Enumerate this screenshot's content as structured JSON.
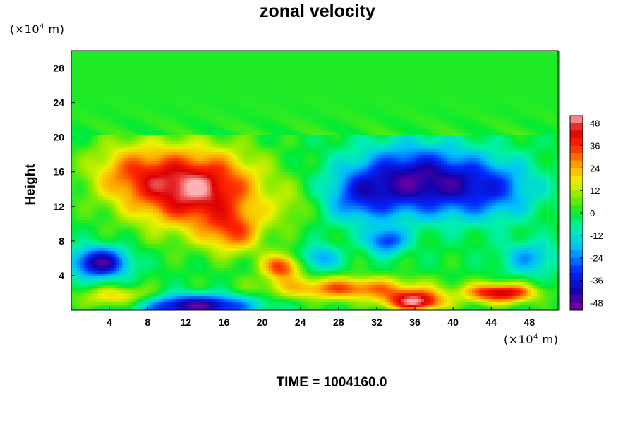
{
  "chart_data": {
    "type": "heatmap",
    "title": "zonal velocity",
    "ylabel": "Height",
    "x_units": "(×10",
    "x_units_exp": "4",
    "x_units_tail": " m)",
    "y_units": "(×10",
    "y_units_exp": "4",
    "y_units_tail": " m)",
    "xlim": [
      0,
      51
    ],
    "ylim": [
      0,
      30
    ],
    "x_ticks": [
      4,
      8,
      12,
      16,
      20,
      24,
      28,
      32,
      36,
      40,
      44,
      48
    ],
    "y_ticks": [
      4,
      8,
      12,
      16,
      20,
      24,
      28
    ],
    "colorbar": {
      "range": [
        -52,
        52
      ],
      "ticks": [
        48,
        36,
        24,
        12,
        0,
        -12,
        -24,
        -36,
        -48
      ]
    },
    "features": [
      {
        "x": 13,
        "y": 14,
        "sx": 6.5,
        "sy": 4.5,
        "value": 50
      },
      {
        "x": 6,
        "y": 16,
        "sx": 4.5,
        "sy": 3.5,
        "value": 20
      },
      {
        "x": 17,
        "y": 9,
        "sx": 3,
        "sy": 2.5,
        "value": 25
      },
      {
        "x": 36,
        "y": 15,
        "sx": 6.5,
        "sy": 4,
        "value": -44
      },
      {
        "x": 30,
        "y": 13,
        "sx": 3.5,
        "sy": 3,
        "value": -20
      },
      {
        "x": 44,
        "y": 14,
        "sx": 5,
        "sy": 3.5,
        "value": -25
      },
      {
        "x": 48,
        "y": 6,
        "sx": 3,
        "sy": 2,
        "value": -20
      },
      {
        "x": 3,
        "y": 5.5,
        "sx": 3,
        "sy": 1.8,
        "value": -45
      },
      {
        "x": 13,
        "y": 0.5,
        "sx": 6,
        "sy": 1.3,
        "value": -48
      },
      {
        "x": 26,
        "y": 6,
        "sx": 2,
        "sy": 1.5,
        "value": -22
      },
      {
        "x": 33,
        "y": 8,
        "sx": 2,
        "sy": 1.5,
        "value": -30
      },
      {
        "x": 29,
        "y": 2.5,
        "sx": 8,
        "sy": 1.3,
        "value": 32
      },
      {
        "x": 36,
        "y": 1,
        "sx": 3,
        "sy": 1.1,
        "value": 48
      },
      {
        "x": 45,
        "y": 2,
        "sx": 3.5,
        "sy": 1.1,
        "value": 46
      },
      {
        "x": 5,
        "y": 1.5,
        "sx": 4,
        "sy": 1.2,
        "value": 22
      },
      {
        "x": 23,
        "y": 12,
        "sx": 2.5,
        "sy": 2.5,
        "value": 8
      },
      {
        "x": 22,
        "y": 5,
        "sx": 2,
        "sy": 1.5,
        "value": 35
      }
    ]
  },
  "footer": {
    "time_label": "TIME = 1004160.0"
  },
  "colors": {
    "max": "#ffb0b0",
    "min": "#8000a0"
  }
}
